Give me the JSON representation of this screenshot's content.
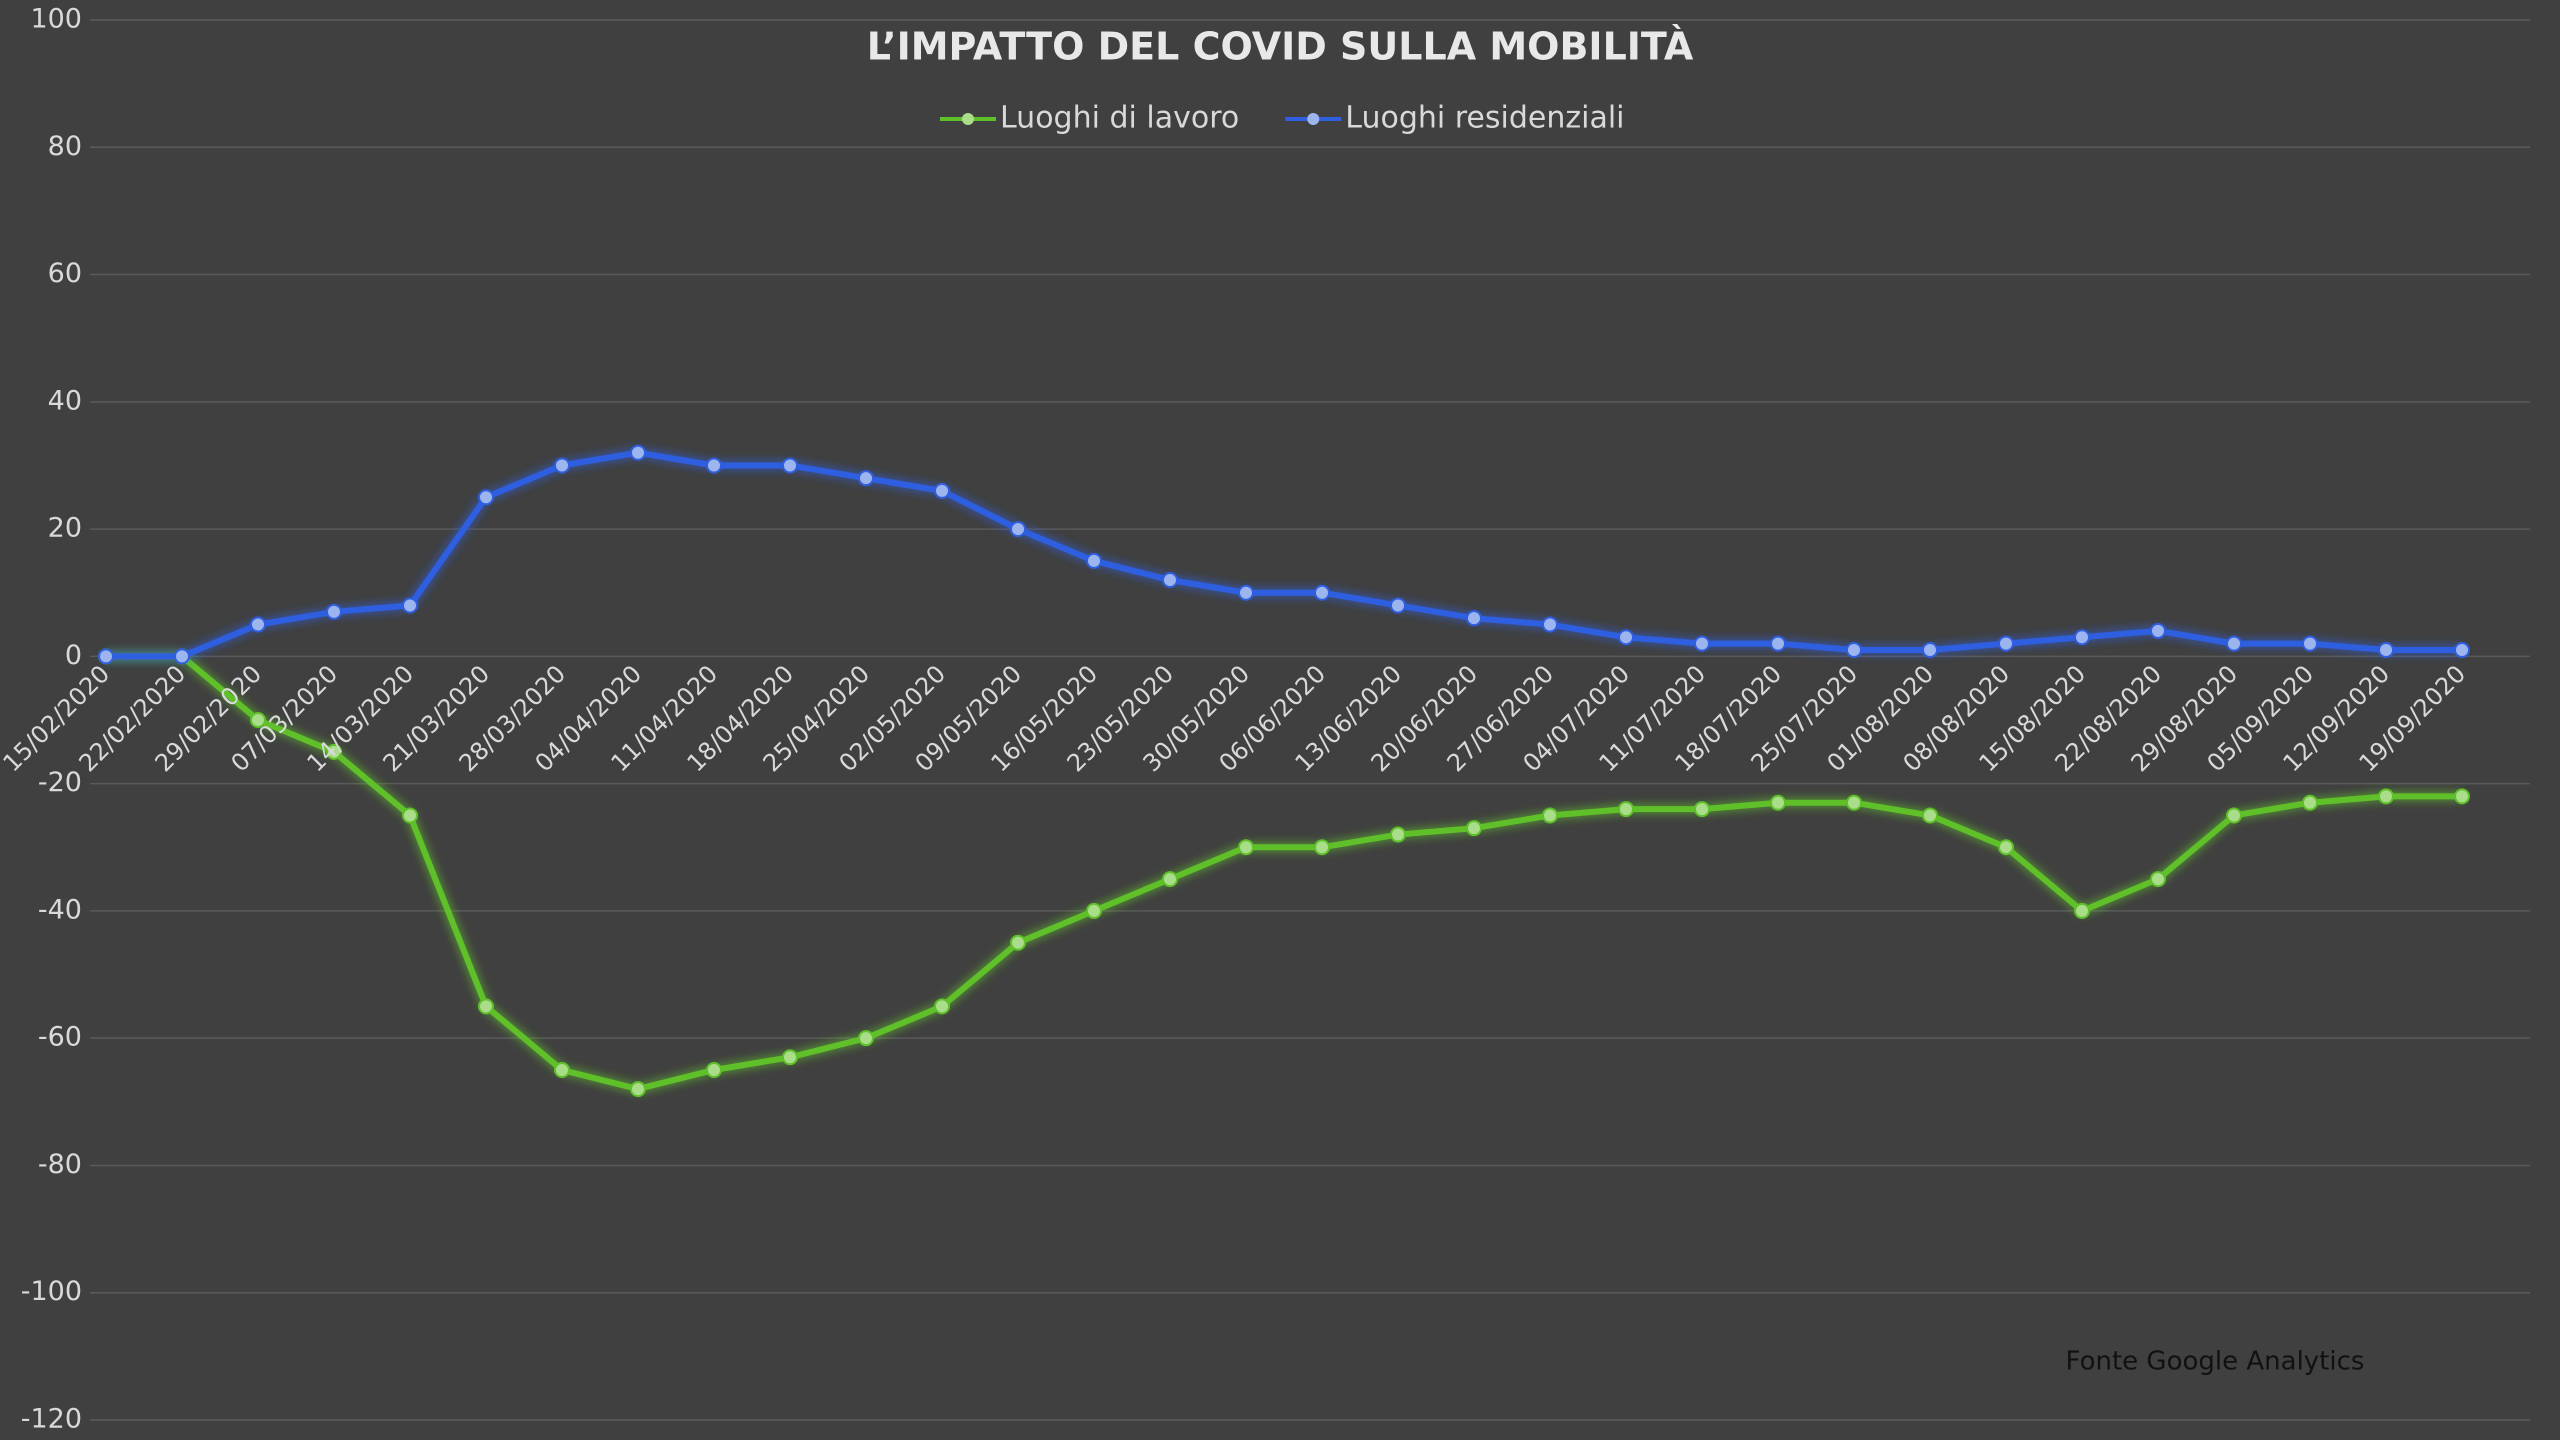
{
  "chart_data": {
    "type": "line",
    "title": "L’IMPATTO DEL COVID SULLA MOBILITÀ",
    "annotation": "Fonte Google Analytics",
    "categories": [
      "15/02/2020",
      "22/02/2020",
      "29/02/2020",
      "07/03/2020",
      "14/03/2020",
      "21/03/2020",
      "28/03/2020",
      "04/04/2020",
      "11/04/2020",
      "18/04/2020",
      "25/04/2020",
      "02/05/2020",
      "09/05/2020",
      "16/05/2020",
      "23/05/2020",
      "30/05/2020",
      "06/06/2020",
      "13/06/2020",
      "20/06/2020",
      "27/06/2020",
      "04/07/2020",
      "11/07/2020",
      "18/07/2020",
      "25/07/2020",
      "01/08/2020",
      "08/08/2020",
      "15/08/2020",
      "22/08/2020",
      "29/08/2020",
      "05/09/2020",
      "12/09/2020",
      "19/09/2020"
    ],
    "series": [
      {
        "name": "Luoghi di lavoro",
        "color": "#a9dd8a",
        "glow": "#5fc02a",
        "values": [
          0,
          0,
          -10,
          -15,
          -25,
          -55,
          -65,
          -68,
          -65,
          -63,
          -60,
          -55,
          -45,
          -40,
          -35,
          -30,
          -30,
          -28,
          -27,
          -25,
          -24,
          -24,
          -23,
          -23,
          -25,
          -30,
          -40,
          -35,
          -25,
          -23,
          -22,
          -22
        ]
      },
      {
        "name": "Luoghi residenziali",
        "color": "#9db5ee",
        "glow": "#2f5fe0",
        "values": [
          0,
          0,
          5,
          7,
          8,
          25,
          30,
          32,
          30,
          30,
          28,
          26,
          20,
          15,
          12,
          10,
          10,
          8,
          6,
          5,
          3,
          2,
          2,
          1,
          1,
          2,
          3,
          4,
          2,
          2,
          1,
          1
        ]
      }
    ],
    "ylim": [
      -120,
      100
    ],
    "yticks": [
      -120,
      -100,
      -80,
      -60,
      -40,
      -20,
      0,
      20,
      40,
      60,
      80,
      100
    ],
    "grid": true,
    "legend": "top"
  }
}
